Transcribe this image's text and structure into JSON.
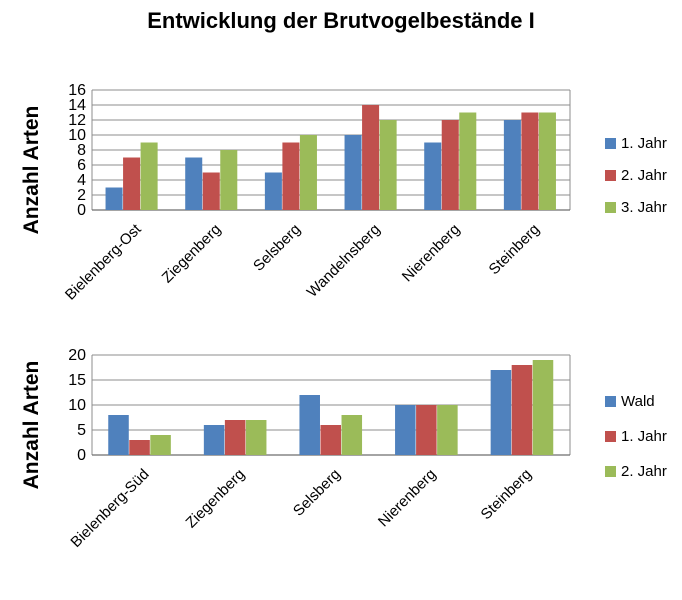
{
  "title": "Entwicklung der  Brutvogelbestände I",
  "colors": {
    "s1": "#4F81BD",
    "s2": "#C0504D",
    "s3": "#9BBB59",
    "grid": "#8c8c8c"
  },
  "chart_data": [
    {
      "type": "bar",
      "ylabel": "Anzahl Arten",
      "xlabel": "",
      "ylim": [
        0,
        16
      ],
      "yticks": [
        0,
        2,
        4,
        6,
        8,
        10,
        12,
        14,
        16
      ],
      "grid": true,
      "legend": "right",
      "categories": [
        "Bielenberg-Ost",
        "Ziegenberg",
        "Selsberg",
        "Wandelnsberg",
        "Nierenberg",
        "Steinberg"
      ],
      "series": [
        {
          "name": "1. Jahr",
          "values": [
            3,
            7,
            5,
            10,
            9,
            12
          ]
        },
        {
          "name": "2. Jahr",
          "values": [
            7,
            5,
            9,
            14,
            12,
            13
          ]
        },
        {
          "name": "3. Jahr",
          "values": [
            9,
            8,
            10,
            12,
            13,
            13
          ]
        }
      ]
    },
    {
      "type": "bar",
      "ylabel": "Anzahl Arten",
      "xlabel": "",
      "ylim": [
        0,
        20
      ],
      "yticks": [
        0,
        5,
        10,
        15,
        20
      ],
      "grid": true,
      "legend": "right",
      "categories": [
        "Bielenberg-Süd",
        "Ziegenberg",
        "Selsberg",
        "Nierenberg",
        "Steinberg"
      ],
      "series": [
        {
          "name": "Wald",
          "values": [
            8,
            6,
            12,
            10,
            17
          ]
        },
        {
          "name": "1. Jahr",
          "values": [
            3,
            7,
            6,
            10,
            18
          ]
        },
        {
          "name": "2. Jahr",
          "values": [
            4,
            7,
            8,
            10,
            19
          ]
        }
      ]
    }
  ]
}
